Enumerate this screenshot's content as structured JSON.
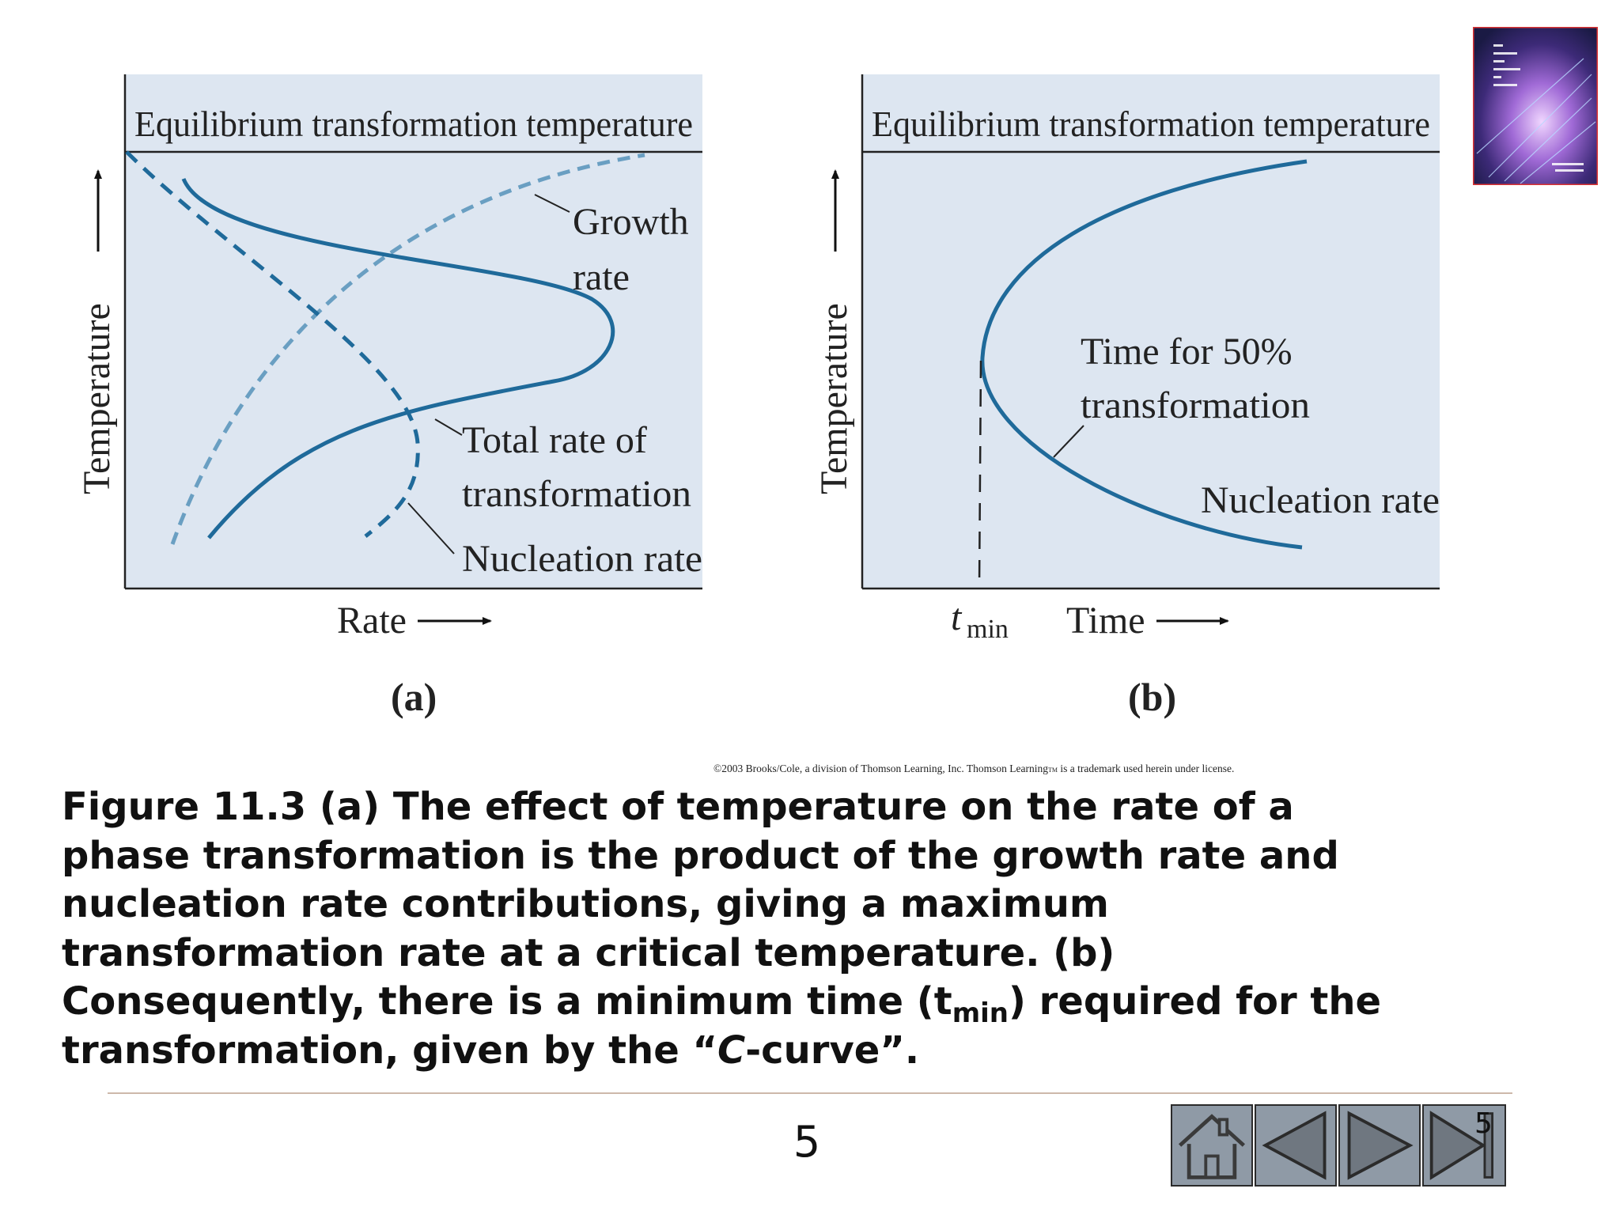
{
  "panel_a": {
    "header": "Equilibrium transformation temperature",
    "y_axis": "Temperature",
    "x_axis": "Rate",
    "growth_label_1": "Growth",
    "growth_label_2": "rate",
    "total_label_1": "Total rate of",
    "total_label_2": "transformation",
    "nucleation_label": "Nucleation rate",
    "panel_label": "(a)"
  },
  "panel_b": {
    "header": "Equilibrium transformation temperature",
    "y_axis": "Temperature",
    "x_axis": "Time",
    "tmin_t": "t",
    "tmin_sub": "min",
    "time50_label_1": "Time for 50%",
    "time50_label_2": "transformation",
    "nucleation_label": "Nucleation rate",
    "panel_label": "(b)"
  },
  "copyright": {
    "text_1": "©2003 Brooks/Cole, a division of Thomson Learning, Inc.  Thomson Learning",
    "tm": "TM",
    "text_2": " is a trademark used herein under license."
  },
  "caption": {
    "line1": "Figure 11.3 (a)  The effect of temperature on the rate of a",
    "line2": "phase transformation is the product of the growth rate and",
    "line3": "nucleation rate contributions, giving a maximum",
    "line4": "transformation rate at a critical temperature. (b)",
    "line5_pre": "Consequently, there is a minimum time (t",
    "line5_sub": "min",
    "line5_post": ") required for the",
    "line6_pre": "transformation, given by the “",
    "line6_italic": "C",
    "line6_post": "-curve”."
  },
  "page_number": "5",
  "nav": {
    "page_indicator": "5",
    "icons": [
      "home-icon",
      "previous-icon",
      "next-icon",
      "last-icon"
    ]
  },
  "colors": {
    "panel_background": "#dde6f1",
    "curve_dark": "#1f6a9a",
    "curve_light": "#6a9fc2",
    "nav_button": "#8f9aa6"
  }
}
